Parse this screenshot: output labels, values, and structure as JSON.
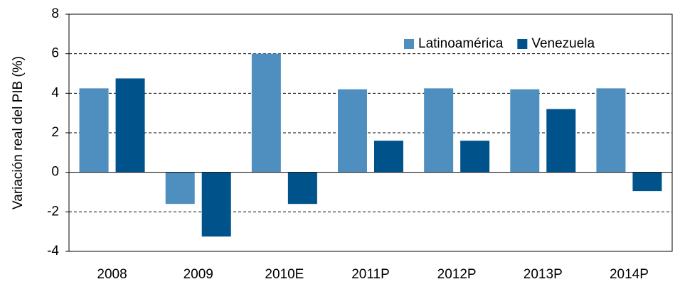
{
  "chart_data": {
    "type": "bar",
    "ylabel": "Variación real del PIB (%)",
    "categories": [
      "2008",
      "2009",
      "2010E",
      "2011P",
      "2012P",
      "2013P",
      "2014P"
    ],
    "series": [
      {
        "name": "Latinoamérica",
        "color": "#4f8fc0",
        "values": [
          4.25,
          -1.6,
          6.0,
          4.2,
          4.25,
          4.2,
          4.25
        ]
      },
      {
        "name": "Venezuela",
        "color": "#00538a",
        "values": [
          4.75,
          -3.25,
          -1.6,
          1.6,
          1.6,
          3.2,
          -0.95
        ]
      }
    ],
    "ylim": [
      -4,
      8
    ],
    "yticks": [
      -4,
      -2,
      0,
      2,
      4,
      6,
      8
    ],
    "grid": true,
    "legend": "upper right"
  }
}
